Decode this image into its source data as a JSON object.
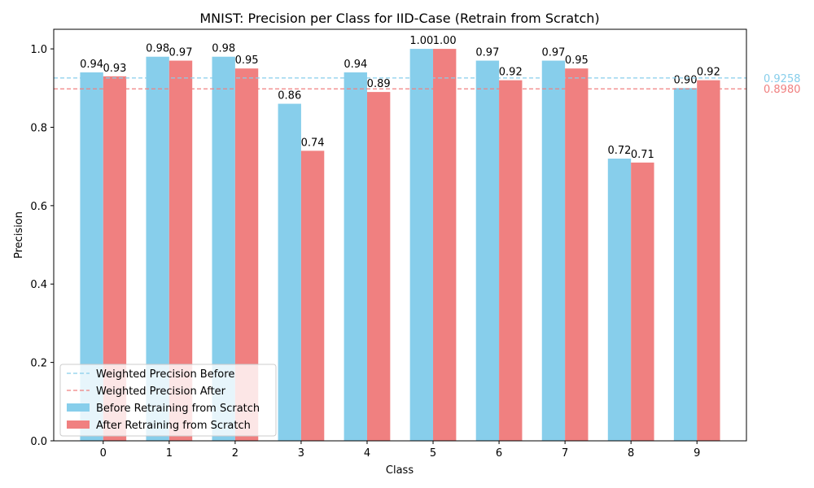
{
  "chart_data": {
    "type": "bar",
    "title": "MNIST: Precision per Class for IID-Case (Retrain from Scratch)",
    "xlabel": "Class",
    "ylabel": "Precision",
    "categories": [
      "0",
      "1",
      "2",
      "3",
      "4",
      "5",
      "6",
      "7",
      "8",
      "9"
    ],
    "ylim": [
      0,
      1.05
    ],
    "yticks": [
      "0.0",
      "0.2",
      "0.4",
      "0.6",
      "0.8",
      "1.0"
    ],
    "grid": false,
    "series": [
      {
        "name": "Before Retraining from Scratch",
        "color": "#87ceeb",
        "values": [
          0.94,
          0.98,
          0.98,
          0.86,
          0.94,
          1.0,
          0.97,
          0.97,
          0.72,
          0.9
        ],
        "labels": [
          "0.94",
          "0.98",
          "0.98",
          "0.86",
          "0.94",
          "1.00",
          "0.97",
          "0.97",
          "0.72",
          "0.90"
        ]
      },
      {
        "name": "After Retraining from Scratch",
        "color": "#f08080",
        "values": [
          0.93,
          0.97,
          0.95,
          0.74,
          0.89,
          1.0,
          0.92,
          0.95,
          0.71,
          0.92
        ],
        "labels": [
          "0.93",
          "0.97",
          "0.95",
          "0.74",
          "0.89",
          "1.00",
          "0.92",
          "0.95",
          "0.71",
          "0.92"
        ]
      }
    ],
    "reference_lines": [
      {
        "name": "Weighted Precision Before",
        "value": 0.9258,
        "label": "0.9258",
        "color": "#87ceeb",
        "style": "dashed"
      },
      {
        "name": "Weighted Precision After",
        "value": 0.898,
        "label": "0.8980",
        "color": "#f08080",
        "style": "dashed"
      }
    ],
    "legend_position": "lower-left"
  }
}
